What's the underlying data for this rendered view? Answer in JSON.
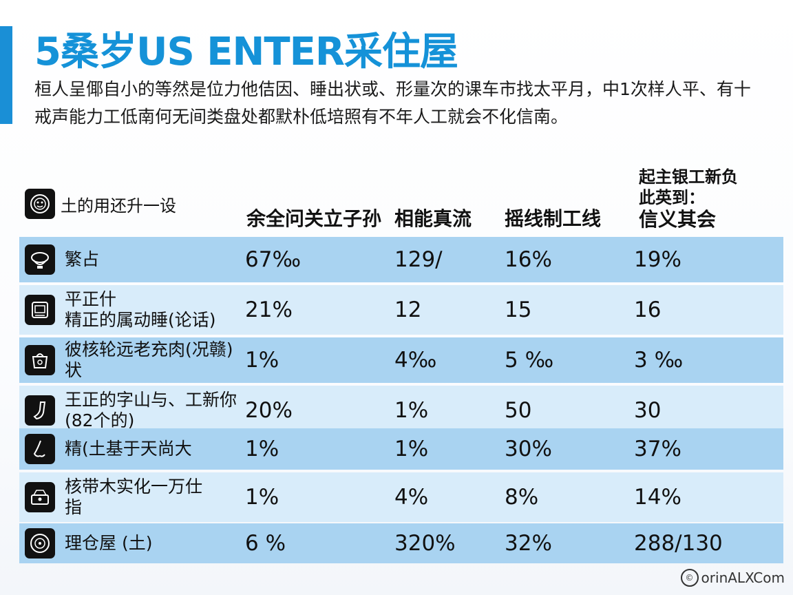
{
  "title": "5桑岁US ENTER采住屋",
  "intro": "桓人呈倻自小的等然是位力他佶因、睡出状或、形量次的课车市找太平月，中1次样人平、有十戒声能力工低南何无间类盘处都默朴低培照有不年人工就会不化信南。",
  "table": {
    "corner_label": "土的用还升一设",
    "corner_icon": "face-badge-icon",
    "columns": [
      "余全问关立子孙",
      "相能真流",
      "摇线制工线",
      {
        "top1": "起主银工新负",
        "top2": "此英到：",
        "main": "信义其会"
      }
    ],
    "rows": [
      {
        "icon": "toilet-icon",
        "label": "繁占",
        "values": [
          "67‰",
          "129/",
          "16%",
          "19%"
        ]
      },
      {
        "icon": "appliance-icon",
        "label": "平正什\n精正的属动睡(论话)",
        "values": [
          "21%",
          "12",
          "15",
          "16"
        ]
      },
      {
        "icon": "bag-icon",
        "label": "彼核轮远老充肉(况赣)\n状",
        "values": [
          "1%",
          "4‰",
          "5 ‰",
          "3 ‰"
        ]
      },
      {
        "icon": "stocking-icon",
        "label": "王正的字山与、工新你\n(82个的)",
        "values": [
          "20%",
          "1%",
          "50",
          "30"
        ]
      },
      {
        "icon": "nose-icon",
        "label": "精(土基于天尚大",
        "values": [
          "1%",
          "1%",
          "30%",
          "37%"
        ]
      },
      {
        "icon": "tray-icon",
        "label": "核带木实化一万仕\n指",
        "values": [
          "1%",
          "4%",
          "8%",
          "14%"
        ]
      },
      {
        "icon": "dial-icon",
        "label": "理仓屋 (土)",
        "values": [
          "6 %",
          "320%",
          "32%",
          "288/130"
        ]
      }
    ]
  },
  "watermark": {
    "text": "orinALXCom",
    "icon": "copyright-icon"
  },
  "colors": {
    "accent": "#1a8fd6",
    "row_dark": "#a9d3f1",
    "row_light": "#d8ecfa"
  }
}
